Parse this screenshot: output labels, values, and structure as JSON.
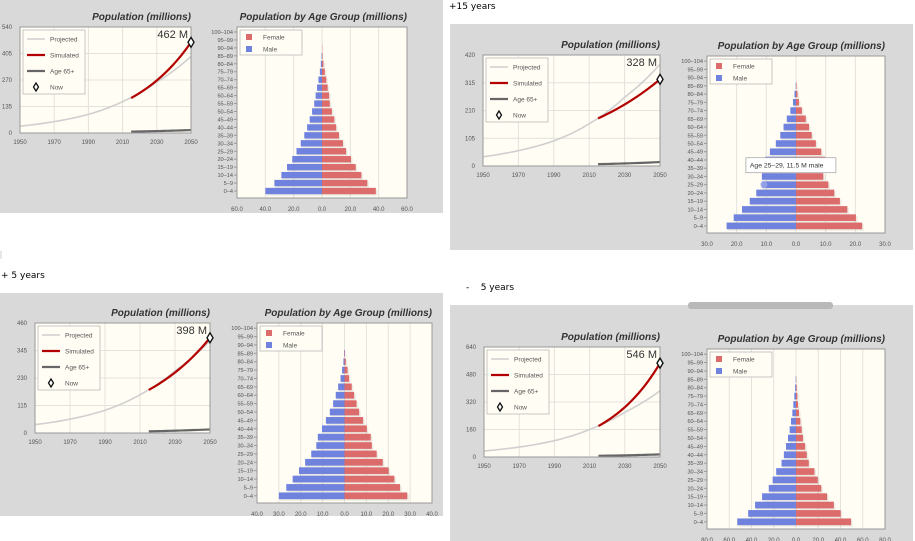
{
  "captions": [
    "",
    "+15 years",
    "+ 5 years",
    "-    5 years"
  ],
  "colors": {
    "panel_bg": "#d9d9d9",
    "plot_bg": "#fffdf4",
    "grid": "#e4e2dc",
    "projected": "#cfcfcf",
    "simulated": "#b30000",
    "age65": "#666666",
    "female": "#dc6b6b",
    "male": "#6e82de"
  },
  "line_legend": [
    "Projected",
    "Simulated",
    "Age 65+",
    "Now"
  ],
  "pyramid_legend": [
    "Female",
    "Male"
  ],
  "age_groups": [
    "0–4",
    "5–9",
    "10–14",
    "15–19",
    "20–24",
    "25–29",
    "30–34",
    "35–39",
    "40–44",
    "45–49",
    "50–54",
    "55–59",
    "60–64",
    "65–69",
    "70–74",
    "75–79",
    "80–84",
    "85–89",
    "90–94",
    "95–99",
    "100–104"
  ],
  "chart_data": [
    {
      "type": "line",
      "title": "Population (millions)",
      "annotation": "462 M",
      "xlim": [
        1950,
        2050
      ],
      "xticks": [
        1950,
        1970,
        1990,
        2010,
        2030,
        2050
      ],
      "ylim": [
        0,
        540
      ],
      "yticks": [
        0,
        135,
        270,
        405,
        540
      ],
      "series": [
        {
          "name": "Projected",
          "x": [
            1950,
            1970,
            1990,
            2010,
            2030,
            2050
          ],
          "y": [
            35,
            58,
            95,
            160,
            260,
            390
          ]
        },
        {
          "name": "Simulated",
          "x": [
            2015,
            2050
          ],
          "y": [
            178,
            462
          ]
        },
        {
          "name": "Age 65+",
          "x": [
            2015,
            2050
          ],
          "y": [
            7,
            15
          ]
        }
      ],
      "now": [
        2050,
        462
      ]
    },
    {
      "type": "bar",
      "orientation": "horizontal-pyramid",
      "title": "Population by Age Group (millions)",
      "xlim": [
        -60,
        60
      ],
      "xstep": 20,
      "series": [
        {
          "name": "Female",
          "values": [
            38,
            32,
            27.8,
            23.8,
            20.5,
            17,
            14.8,
            12,
            10,
            8.7,
            7,
            5.5,
            5,
            4,
            3,
            2,
            1,
            0.4,
            0.2,
            0,
            0
          ]
        },
        {
          "name": "Male",
          "values": [
            40,
            33.6,
            28.7,
            24.7,
            21,
            18,
            15,
            12.5,
            10.5,
            8.7,
            7,
            5.5,
            4.5,
            3.5,
            2.5,
            1.5,
            0.8,
            0.3,
            0,
            0,
            0
          ]
        }
      ]
    },
    {
      "type": "line",
      "title": "Population (millions)",
      "annotation": "328 M",
      "xlim": [
        1950,
        2050
      ],
      "xticks": [
        1950,
        1970,
        1990,
        2010,
        2030,
        2050
      ],
      "ylim": [
        0,
        420
      ],
      "yticks": [
        0,
        105,
        210,
        315,
        420
      ],
      "series": [
        {
          "name": "Projected",
          "x": [
            1950,
            1970,
            1990,
            2010,
            2030,
            2050
          ],
          "y": [
            35,
            58,
            95,
            160,
            260,
            385
          ]
        },
        {
          "name": "Simulated",
          "x": [
            2015,
            2050
          ],
          "y": [
            180,
            328
          ]
        },
        {
          "name": "Age 65+",
          "x": [
            2015,
            2050
          ],
          "y": [
            7,
            15
          ]
        }
      ],
      "now": [
        2050,
        328
      ]
    },
    {
      "type": "bar",
      "orientation": "horizontal-pyramid",
      "title": "Population by Age Group (millions)",
      "xlim": [
        -30,
        30
      ],
      "xstep": 10,
      "tooltip": {
        "text": "Age 25–29, 11.5 M male",
        "age_group": "25–29",
        "series": "Male"
      },
      "series": [
        {
          "name": "Female",
          "values": [
            22.3,
            20.2,
            17.3,
            14.8,
            12.9,
            10.9,
            9.2,
            11.8,
            9.8,
            8.5,
            6.7,
            5.3,
            4.4,
            3.3,
            2,
            1,
            0.5,
            0.2,
            0,
            0,
            0
          ]
        },
        {
          "name": "Male",
          "values": [
            23.4,
            21,
            18.2,
            15.6,
            13.4,
            11.5,
            11.5,
            12.5,
            10.4,
            8.8,
            6.8,
            5.3,
            4.2,
            3.1,
            1.9,
            1,
            0.5,
            0.1,
            0,
            0,
            0
          ]
        }
      ]
    },
    {
      "type": "line",
      "title": "Population (millions)",
      "annotation": "398 M",
      "xlim": [
        1950,
        2050
      ],
      "xticks": [
        1950,
        1970,
        1990,
        2010,
        2030,
        2050
      ],
      "ylim": [
        0,
        460
      ],
      "yticks": [
        0,
        115,
        230,
        345,
        460
      ],
      "series": [
        {
          "name": "Projected",
          "x": [
            1950,
            1970,
            1990,
            2010,
            2030,
            2050
          ],
          "y": [
            35,
            58,
            95,
            160,
            260,
            385
          ]
        },
        {
          "name": "Simulated",
          "x": [
            2015,
            2050
          ],
          "y": [
            180,
            398
          ]
        },
        {
          "name": "Age 65+",
          "x": [
            2015,
            2050
          ],
          "y": [
            7,
            15
          ]
        }
      ],
      "now": [
        2050,
        398
      ]
    },
    {
      "type": "bar",
      "orientation": "horizontal-pyramid",
      "title": "Population by Age Group (millions)",
      "xlim": [
        -40,
        40
      ],
      "xstep": 10,
      "series": [
        {
          "name": "Female",
          "values": [
            28.7,
            25.4,
            22.8,
            20.2,
            17.5,
            14.7,
            12.5,
            12,
            10.2,
            8.5,
            6.7,
            5.5,
            4.4,
            3.3,
            2.1,
            1.4,
            0.6,
            0.2,
            0,
            0,
            0
          ]
        },
        {
          "name": "Male",
          "values": [
            30,
            26.6,
            23.7,
            20.8,
            18,
            15.2,
            12.9,
            12.2,
            10.3,
            8.5,
            6.7,
            5.2,
            4,
            2.9,
            1.8,
            1.1,
            0.5,
            0.2,
            0,
            0,
            0
          ]
        }
      ]
    },
    {
      "type": "line",
      "title": "Population (millions)",
      "annotation": "546 M",
      "xlim": [
        1950,
        2050
      ],
      "xticks": [
        1950,
        1970,
        1990,
        2010,
        2030,
        2050
      ],
      "ylim": [
        0,
        640
      ],
      "yticks": [
        0,
        160,
        320,
        480,
        640
      ],
      "series": [
        {
          "name": "Projected",
          "x": [
            1950,
            1970,
            1990,
            2010,
            2030,
            2050
          ],
          "y": [
            35,
            58,
            95,
            160,
            260,
            385
          ]
        },
        {
          "name": "Simulated",
          "x": [
            2015,
            2050
          ],
          "y": [
            180,
            546
          ]
        },
        {
          "name": "Age 65+",
          "x": [
            2015,
            2050
          ],
          "y": [
            7,
            15
          ]
        }
      ],
      "now": [
        2050,
        546
      ]
    },
    {
      "type": "bar",
      "orientation": "horizontal-pyramid",
      "title": "Population by Age Group (millions)",
      "xlim": [
        -80,
        80
      ],
      "xstep": 20,
      "series": [
        {
          "name": "Female",
          "values": [
            49.5,
            40.2,
            34,
            28,
            22.7,
            19.6,
            16.6,
            11.5,
            9.7,
            8.2,
            6.3,
            5.1,
            3.9,
            2.7,
            1.8,
            1.2,
            0.6,
            0.2,
            0,
            0,
            0
          ]
        },
        {
          "name": "Male",
          "values": [
            52.8,
            43,
            36.8,
            30.5,
            24.5,
            21,
            17.8,
            13,
            10.9,
            9,
            7.2,
            5.7,
            4.5,
            3.3,
            2.4,
            1.5,
            0.8,
            0.3,
            0,
            0,
            0
          ]
        }
      ]
    }
  ]
}
